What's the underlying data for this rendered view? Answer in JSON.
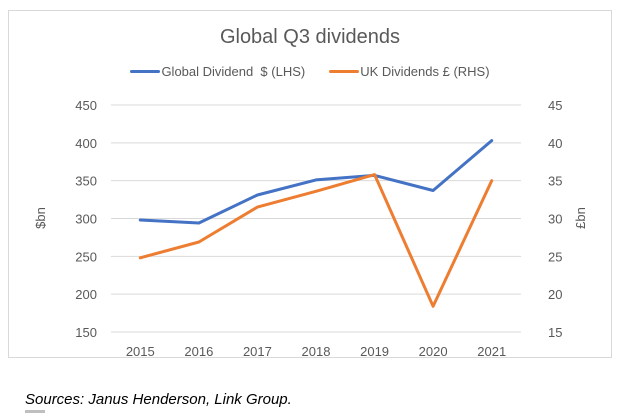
{
  "chart_data": {
    "type": "line",
    "title": "Global Q3 dividends",
    "categories": [
      "2015",
      "2016",
      "2017",
      "2018",
      "2019",
      "2020",
      "2021"
    ],
    "series": [
      {
        "name": "Global Dividend  $ (LHS)",
        "axis": "left",
        "color": "#4472c4",
        "values": [
          298,
          294,
          331,
          351,
          357,
          337,
          403
        ]
      },
      {
        "name": "UK Dividends £ (RHS)",
        "axis": "right",
        "color": "#ed7d31",
        "values": [
          24.8,
          26.9,
          31.5,
          33.6,
          35.8,
          18.4,
          35.0
        ]
      }
    ],
    "ylabel": "$bn",
    "y2label": "£bn",
    "ylim": [
      150,
      450
    ],
    "y2lim": [
      15,
      45
    ],
    "yticks": [
      "150",
      "200",
      "250",
      "300",
      "350",
      "400",
      "450"
    ],
    "y2ticks": [
      "15",
      "20",
      "25",
      "30",
      "35",
      "40",
      "45"
    ],
    "grid": true,
    "legend_position": "top"
  },
  "footer": {
    "source": "Sources: Janus Henderson, Link Group."
  }
}
